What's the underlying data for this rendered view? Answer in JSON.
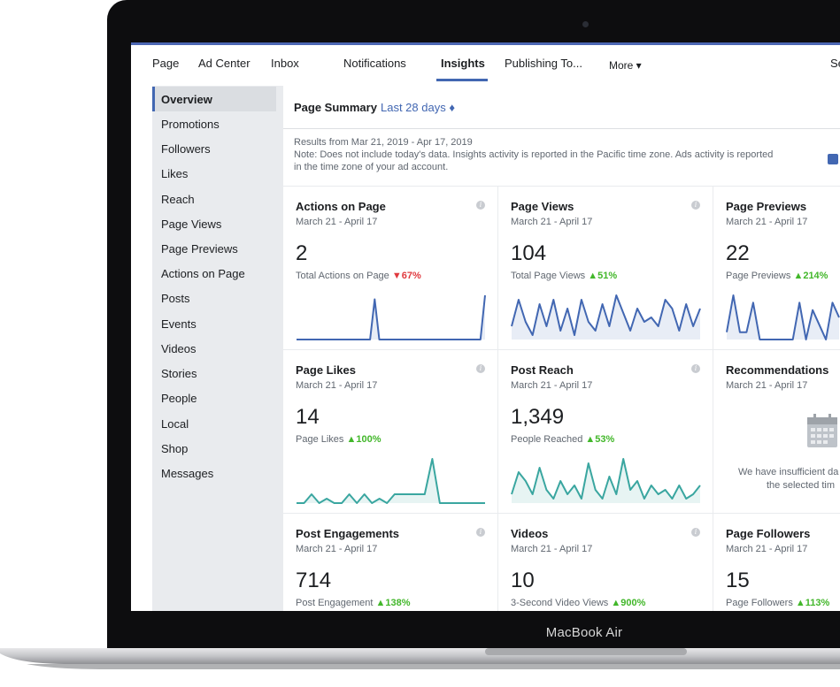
{
  "device": {
    "label": "MacBook Air"
  },
  "nav": {
    "items": [
      "Page",
      "Ad Center",
      "Inbox",
      "Notifications",
      "Insights",
      "Publishing To...",
      "More ▾",
      "Se"
    ]
  },
  "sidebar": {
    "items": [
      "Overview",
      "Promotions",
      "Followers",
      "Likes",
      "Reach",
      "Page Views",
      "Page Previews",
      "Actions on Page",
      "Posts",
      "Events",
      "Videos",
      "Stories",
      "People",
      "Local",
      "Shop",
      "Messages"
    ]
  },
  "summary": {
    "title": "Page Summary",
    "range": "Last 28 days ♦",
    "results": "Results from Mar 21, 2019 - Apr 17, 2019",
    "note_line1": "Note: Does not include today's data. Insights activity is reported in the Pacific time zone. Ads activity is reported",
    "note_line2": "in the time zone of your ad account."
  },
  "colors": {
    "accent": "#4267b2",
    "teal": "#3aa6a0",
    "up": "#42b72a",
    "down": "#e0393e"
  },
  "cards": [
    {
      "title": "Actions on Page",
      "date": "March 21 - April 17",
      "value": "2",
      "label": "Total Actions on Page",
      "change": "▼67%",
      "trend": "down",
      "color": "#4267b2",
      "spark": [
        0,
        0,
        0,
        0,
        0,
        0,
        0,
        0,
        0,
        0,
        0,
        0,
        0,
        0,
        0,
        0,
        0,
        10,
        0,
        0,
        0,
        0,
        0,
        0,
        0,
        0,
        0,
        0,
        0,
        0,
        0,
        0,
        0,
        0,
        0,
        0,
        0,
        0,
        0,
        0,
        0,
        11
      ]
    },
    {
      "title": "Page Views",
      "date": "March 21 - April 17",
      "value": "104",
      "label": "Total Page Views",
      "change": "▲51%",
      "trend": "up",
      "color": "#4267b2",
      "spark": [
        3,
        9,
        4,
        1,
        8,
        3,
        9,
        2,
        7,
        1,
        9,
        4,
        2,
        8,
        3,
        10,
        6,
        2,
        7,
        4,
        5,
        3,
        9,
        7,
        2,
        8,
        3,
        7
      ]
    },
    {
      "title": "Page Previews",
      "date": "March 21 - April 17",
      "value": "22",
      "label": "Page Previews",
      "change": "▲214%",
      "trend": "up",
      "color": "#4267b2",
      "spark": [
        1,
        6,
        1,
        1,
        5,
        0,
        0,
        0,
        0,
        0,
        0,
        5,
        0,
        4,
        2,
        0,
        5,
        3
      ]
    },
    {
      "title": "Page Likes",
      "date": "March 21 - April 17",
      "value": "14",
      "label": "Page Likes",
      "change": "▲100%",
      "trend": "up",
      "color": "#3aa6a0",
      "spark": [
        0,
        0,
        2,
        0,
        1,
        0,
        0,
        2,
        0,
        2,
        0,
        1,
        0,
        2,
        2,
        2,
        2,
        2,
        10,
        0,
        0,
        0,
        0,
        0,
        0,
        0
      ]
    },
    {
      "title": "Post Reach",
      "date": "March 21 - April 17",
      "value": "1,349",
      "label": "People Reached",
      "change": "▲53%",
      "trend": "up",
      "color": "#3aa6a0",
      "spark": [
        2,
        7,
        5,
        2,
        8,
        3,
        1,
        5,
        2,
        4,
        1,
        9,
        3,
        1,
        6,
        2,
        10,
        3,
        5,
        1,
        4,
        2,
        3,
        1,
        4,
        1,
        2,
        4
      ]
    },
    {
      "title": "Recommendations",
      "date": "March 21 - April 17",
      "value": "",
      "label": "",
      "change": "",
      "trend": "",
      "color": "#4267b2",
      "empty_line1": "We have insufficient da",
      "empty_line2": "the selected tim"
    },
    {
      "title": "Post Engagements",
      "date": "March 21 - April 17",
      "value": "714",
      "label": "Post Engagement",
      "change": "▲138%",
      "trend": "up",
      "color": "#4267b2"
    },
    {
      "title": "Videos",
      "date": "March 21 - April 17",
      "value": "10",
      "label": "3-Second Video Views",
      "change": "▲900%",
      "trend": "up",
      "color": "#4267b2"
    },
    {
      "title": "Page Followers",
      "date": "March 21 - April 17",
      "value": "15",
      "label": "Page Followers",
      "change": "▲113%",
      "trend": "up",
      "color": "#4267b2"
    }
  ]
}
